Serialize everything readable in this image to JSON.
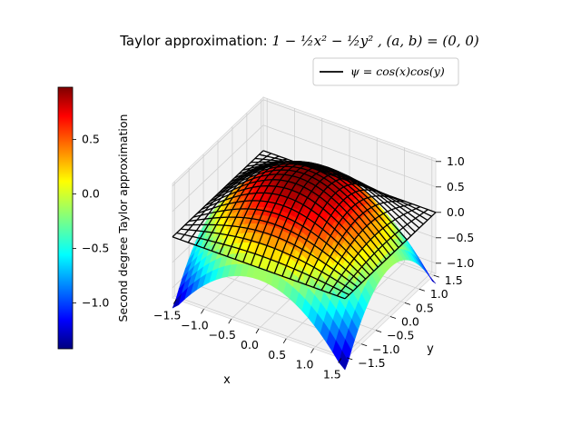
{
  "chart_data": {
    "type": "surface3d",
    "title": {
      "prefix": "Taylor approximation: ",
      "formula": "1 − ½x² − ½y² ,  (a, b) = (0, 0)"
    },
    "xlabel": "x",
    "ylabel": "y",
    "x_ticks": [
      "−1.5",
      "−1.0",
      "−0.5",
      "0.0",
      "0.5",
      "1.0",
      "1.5"
    ],
    "y_ticks": [
      "−1.5",
      "−1.0",
      "−0.5",
      "0.0",
      "0.5",
      "1.0",
      "1.5"
    ],
    "z_ticks": [
      "1.0",
      "0.5",
      "0.0",
      "−0.5",
      "−1.0"
    ],
    "xlim": [
      -1.57,
      1.57
    ],
    "ylim": [
      -1.57,
      1.57
    ],
    "zlim": [
      -1.2,
      1.0
    ],
    "grid": true,
    "legend": {
      "position": "top-right",
      "entries": [
        {
          "name": "ψ = cos(x)cos(y)",
          "color": "#000000"
        }
      ]
    },
    "colorbar": {
      "label": "Second degree Taylor approximation",
      "ticks": [
        "0.5",
        "0.0",
        "−0.5",
        "−1.0"
      ],
      "range": [
        -1.42,
        0.98
      ],
      "colormap": "jet"
    },
    "series": [
      {
        "name": "Second degree Taylor approximation",
        "function": "1 - x^2/2 - y^2/2",
        "style": "colored surface (jet)"
      },
      {
        "name": "ψ = cos(x)cos(y)",
        "function": "cos(x)*cos(y)",
        "style": "black wireframe",
        "color": "#000000"
      }
    ]
  }
}
